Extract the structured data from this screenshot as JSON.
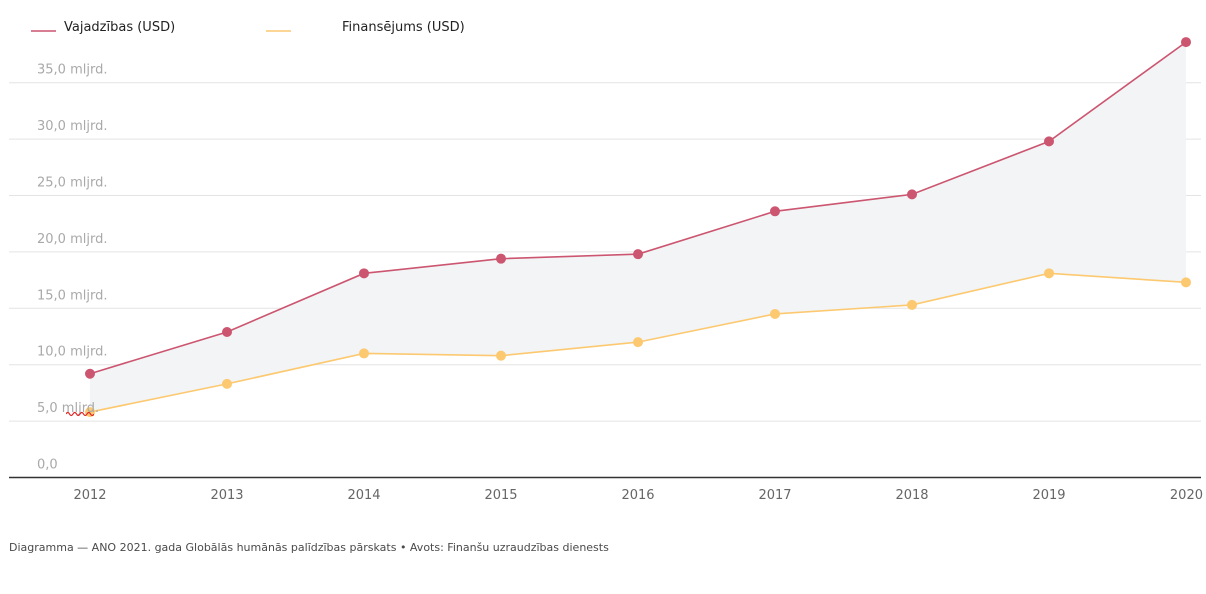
{
  "chart_data": {
    "type": "line",
    "title": "",
    "xlabel": "",
    "ylabel": "",
    "categories": [
      "2012",
      "2013",
      "2014",
      "2015",
      "2016",
      "2017",
      "2018",
      "2019",
      "2020"
    ],
    "x_ticks": [
      "2012",
      "2013",
      "2014",
      "2015",
      "2016",
      "2017",
      "2018",
      "2019",
      "2020"
    ],
    "ylim": [
      0,
      39
    ],
    "y_ticks": [
      {
        "value": 0,
        "label": "0,0"
      },
      {
        "value": 5,
        "label": "5,0 mljrd."
      },
      {
        "value": 10,
        "label": "10,0 mljrd."
      },
      {
        "value": 15,
        "label": "15,0 mljrd."
      },
      {
        "value": 20,
        "label": "20,0 mljrd."
      },
      {
        "value": 25,
        "label": "25,0 mljrd."
      },
      {
        "value": 30,
        "label": "30,0 mljrd."
      },
      {
        "value": 35,
        "label": "35,0 mljrd."
      }
    ],
    "series": [
      {
        "name": "Vajadzības (USD)",
        "color": "#cc5570",
        "values": [
          9.2,
          12.9,
          18.1,
          19.4,
          19.8,
          23.6,
          25.1,
          29.8,
          38.6
        ]
      },
      {
        "name": "Finansējums (USD)",
        "color": "#fcc970",
        "values": [
          5.8,
          8.3,
          11.0,
          10.8,
          12.0,
          14.5,
          15.3,
          18.1,
          17.3
        ]
      }
    ],
    "gap_fill_color": "#f2f4f5",
    "grid": true,
    "legend_position": "top-left"
  },
  "caption": "Diagramma — ANO 2021. gada Globālās humānās palīdzības pārskats • Avots: Finanšu uzraudzības dienests"
}
